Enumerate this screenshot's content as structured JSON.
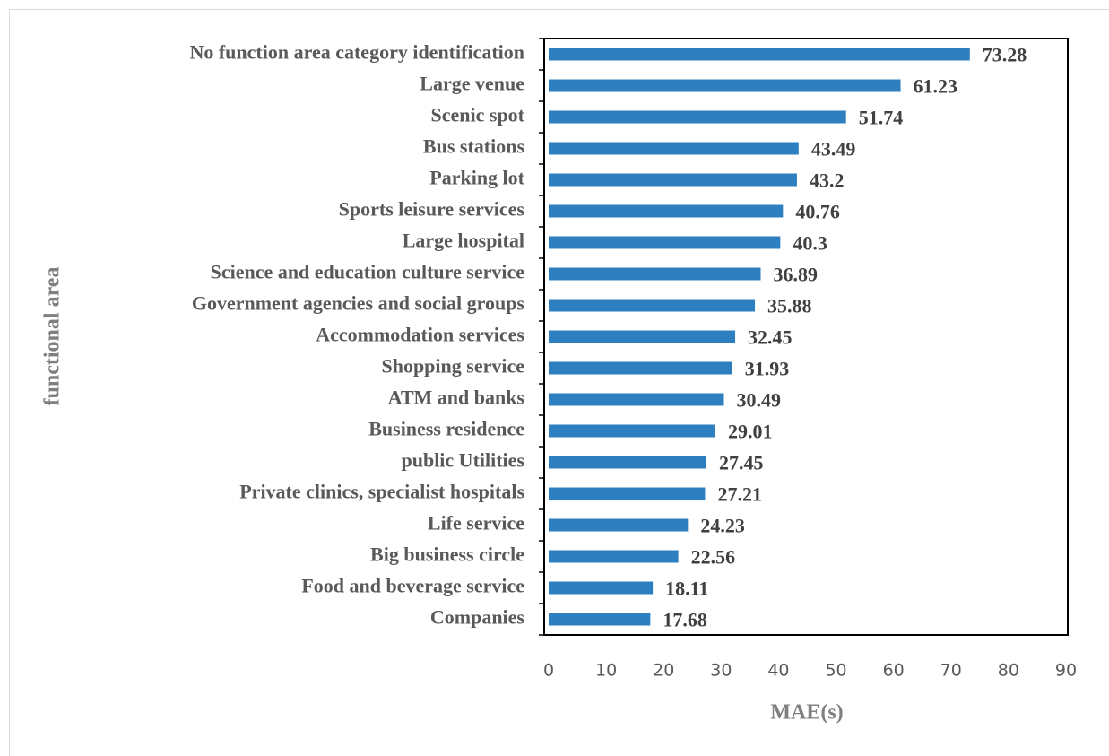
{
  "chart_data": {
    "type": "bar",
    "orientation": "horizontal",
    "x_label": "MAE(s)",
    "y_label": "functional area",
    "categories": [
      "No function area category identification",
      "Large venue",
      "Scenic spot",
      "Bus stations",
      "Parking lot",
      "Sports leisure services",
      "Large hospital",
      "Science and education culture service",
      "Government agencies and social groups",
      "Accommodation services",
      "Shopping service",
      "ATM and banks",
      "Business residence",
      "public Utilities",
      "Private clinics, specialist hospitals",
      "Life service",
      "Big business circle",
      "Food and beverage service",
      "Companies"
    ],
    "values": [
      73.28,
      61.23,
      51.74,
      43.49,
      43.2,
      40.76,
      40.3,
      36.89,
      35.88,
      32.45,
      31.93,
      30.49,
      29.01,
      27.45,
      27.21,
      24.23,
      22.56,
      18.11,
      17.68
    ],
    "color": "#2e7fc0",
    "xlim": [
      0,
      90
    ],
    "xticks": [
      0,
      10,
      20,
      30,
      40,
      50,
      60,
      70,
      80,
      90
    ],
    "grid": false
  }
}
